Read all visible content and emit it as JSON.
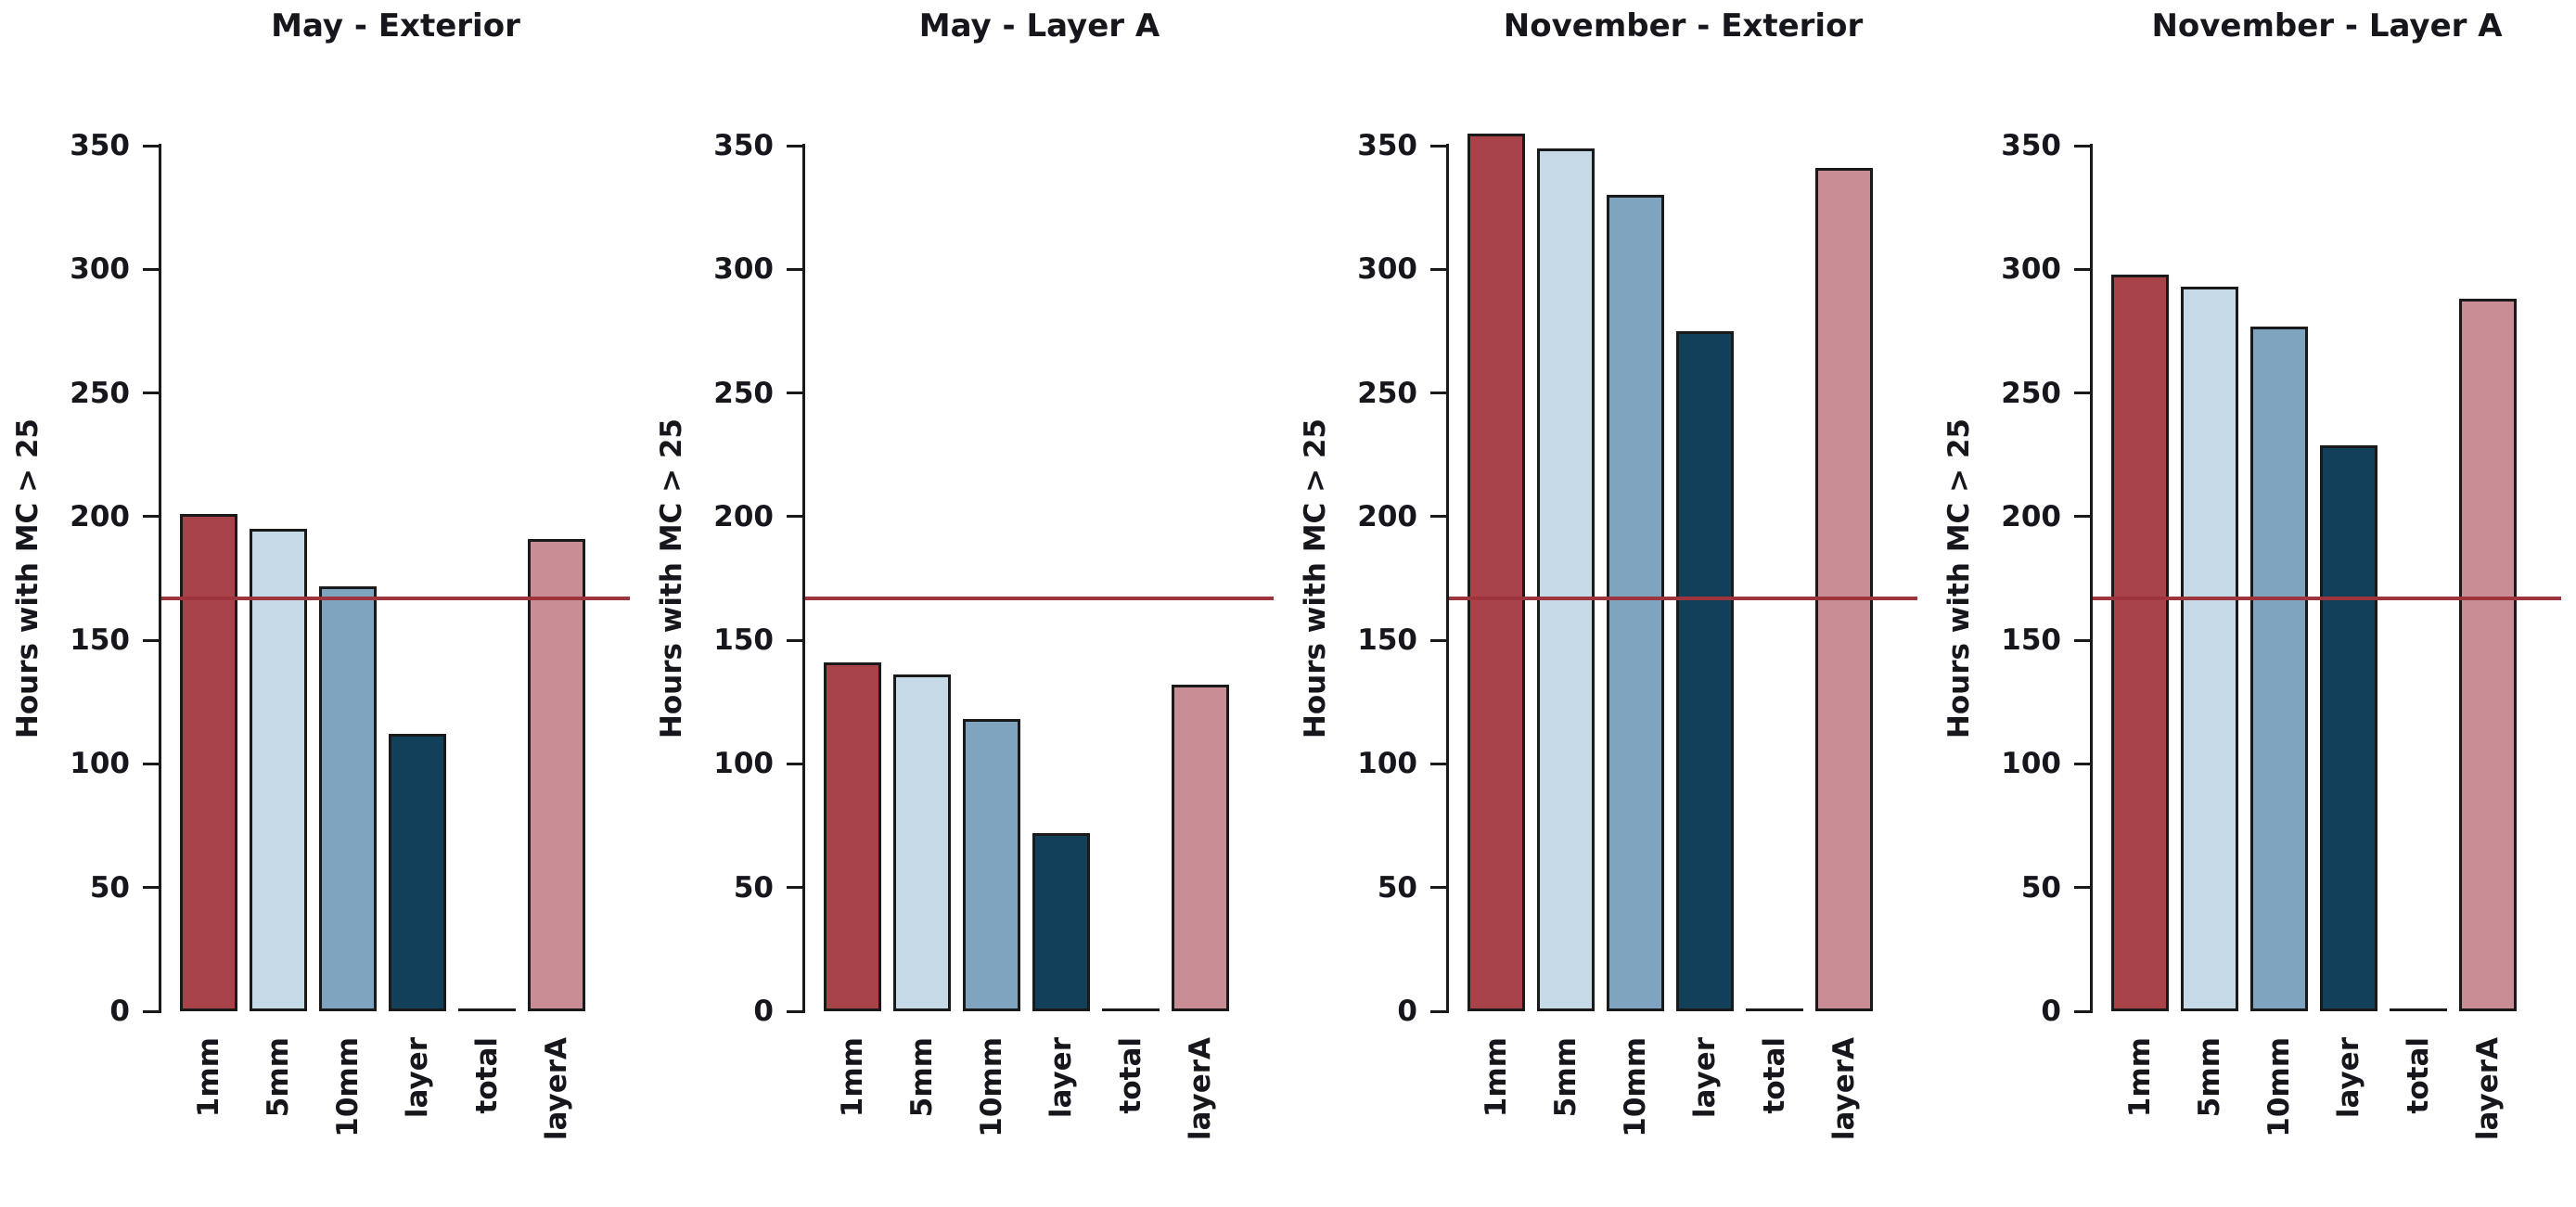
{
  "figure": {
    "background": "#ffffff",
    "axis_color": "#1a1a1a",
    "text_color": "#16161d"
  },
  "chart_data": [
    {
      "type": "bar",
      "title": "May - Exterior",
      "ylabel": "Hours with MC > 25",
      "categories": [
        "1mm",
        "5mm",
        "10mm",
        "layer",
        "total",
        "layerA"
      ],
      "values": [
        201,
        195,
        172,
        112,
        0,
        191
      ],
      "bar_colors": [
        "#A8434A",
        "#C6D9E7",
        "#7FA4BF",
        "#123F5A",
        "#FFFFFF",
        "#C98D95"
      ],
      "ylim": [
        0,
        350
      ],
      "yticks": [
        0,
        50,
        100,
        150,
        200,
        250,
        300,
        350
      ],
      "grid": false,
      "legend": "none",
      "reference_line": {
        "value": 167,
        "color": "#9E343C"
      }
    },
    {
      "type": "bar",
      "title": "May - Layer A",
      "ylabel": "Hours with MC > 25",
      "categories": [
        "1mm",
        "5mm",
        "10mm",
        "layer",
        "total",
        "layerA"
      ],
      "values": [
        141,
        136,
        118,
        72,
        0,
        132
      ],
      "bar_colors": [
        "#A8434A",
        "#C6D9E7",
        "#7FA4BF",
        "#123F5A",
        "#FFFFFF",
        "#C98D95"
      ],
      "ylim": [
        0,
        350
      ],
      "yticks": [
        0,
        50,
        100,
        150,
        200,
        250,
        300,
        350
      ],
      "grid": false,
      "legend": "none",
      "reference_line": {
        "value": 167,
        "color": "#9E343C"
      }
    },
    {
      "type": "bar",
      "title": "November - Exterior",
      "ylabel": "Hours with MC > 25",
      "categories": [
        "1mm",
        "5mm",
        "10mm",
        "layer",
        "total",
        "layerA"
      ],
      "values": [
        355,
        349,
        330,
        275,
        0,
        341
      ],
      "bar_colors": [
        "#A8434A",
        "#C6D9E7",
        "#7FA4BF",
        "#123F5A",
        "#FFFFFF",
        "#C98D95"
      ],
      "ylim": [
        0,
        350
      ],
      "yticks": [
        0,
        50,
        100,
        150,
        200,
        250,
        300,
        350
      ],
      "grid": false,
      "legend": "none",
      "reference_line": {
        "value": 167,
        "color": "#9E343C"
      }
    },
    {
      "type": "bar",
      "title": "November - Layer A",
      "ylabel": "Hours with MC > 25",
      "categories": [
        "1mm",
        "5mm",
        "10mm",
        "layer",
        "total",
        "layerA"
      ],
      "values": [
        298,
        293,
        277,
        229,
        0,
        288
      ],
      "bar_colors": [
        "#A8434A",
        "#C6D9E7",
        "#7FA4BF",
        "#123F5A",
        "#FFFFFF",
        "#C98D95"
      ],
      "ylim": [
        0,
        350
      ],
      "yticks": [
        0,
        50,
        100,
        150,
        200,
        250,
        300,
        350
      ],
      "grid": false,
      "legend": "none",
      "reference_line": {
        "value": 167,
        "color": "#9E343C"
      }
    }
  ]
}
